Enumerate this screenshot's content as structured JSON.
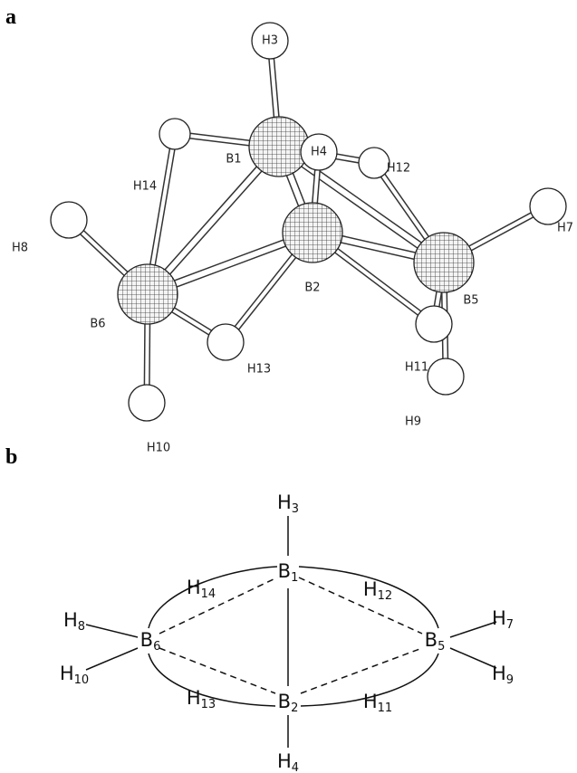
{
  "panel_a": {
    "label": "a",
    "atoms": [
      "H3",
      "B1",
      "H14",
      "H4",
      "H12",
      "H7",
      "H8",
      "B2",
      "B5",
      "B6",
      "H11",
      "H13",
      "H9",
      "H10"
    ]
  },
  "panel_b": {
    "label": "b",
    "atoms": [
      {
        "symbol": "H",
        "index": "3"
      },
      {
        "symbol": "B",
        "index": "1"
      },
      {
        "symbol": "H",
        "index": "14"
      },
      {
        "symbol": "H",
        "index": "12"
      },
      {
        "symbol": "H",
        "index": "8"
      },
      {
        "symbol": "H",
        "index": "7"
      },
      {
        "symbol": "B",
        "index": "6"
      },
      {
        "symbol": "B",
        "index": "5"
      },
      {
        "symbol": "H",
        "index": "10"
      },
      {
        "symbol": "H",
        "index": "9"
      },
      {
        "symbol": "H",
        "index": "13"
      },
      {
        "symbol": "H",
        "index": "11"
      },
      {
        "symbol": "B",
        "index": "2"
      },
      {
        "symbol": "H",
        "index": "4"
      }
    ]
  }
}
